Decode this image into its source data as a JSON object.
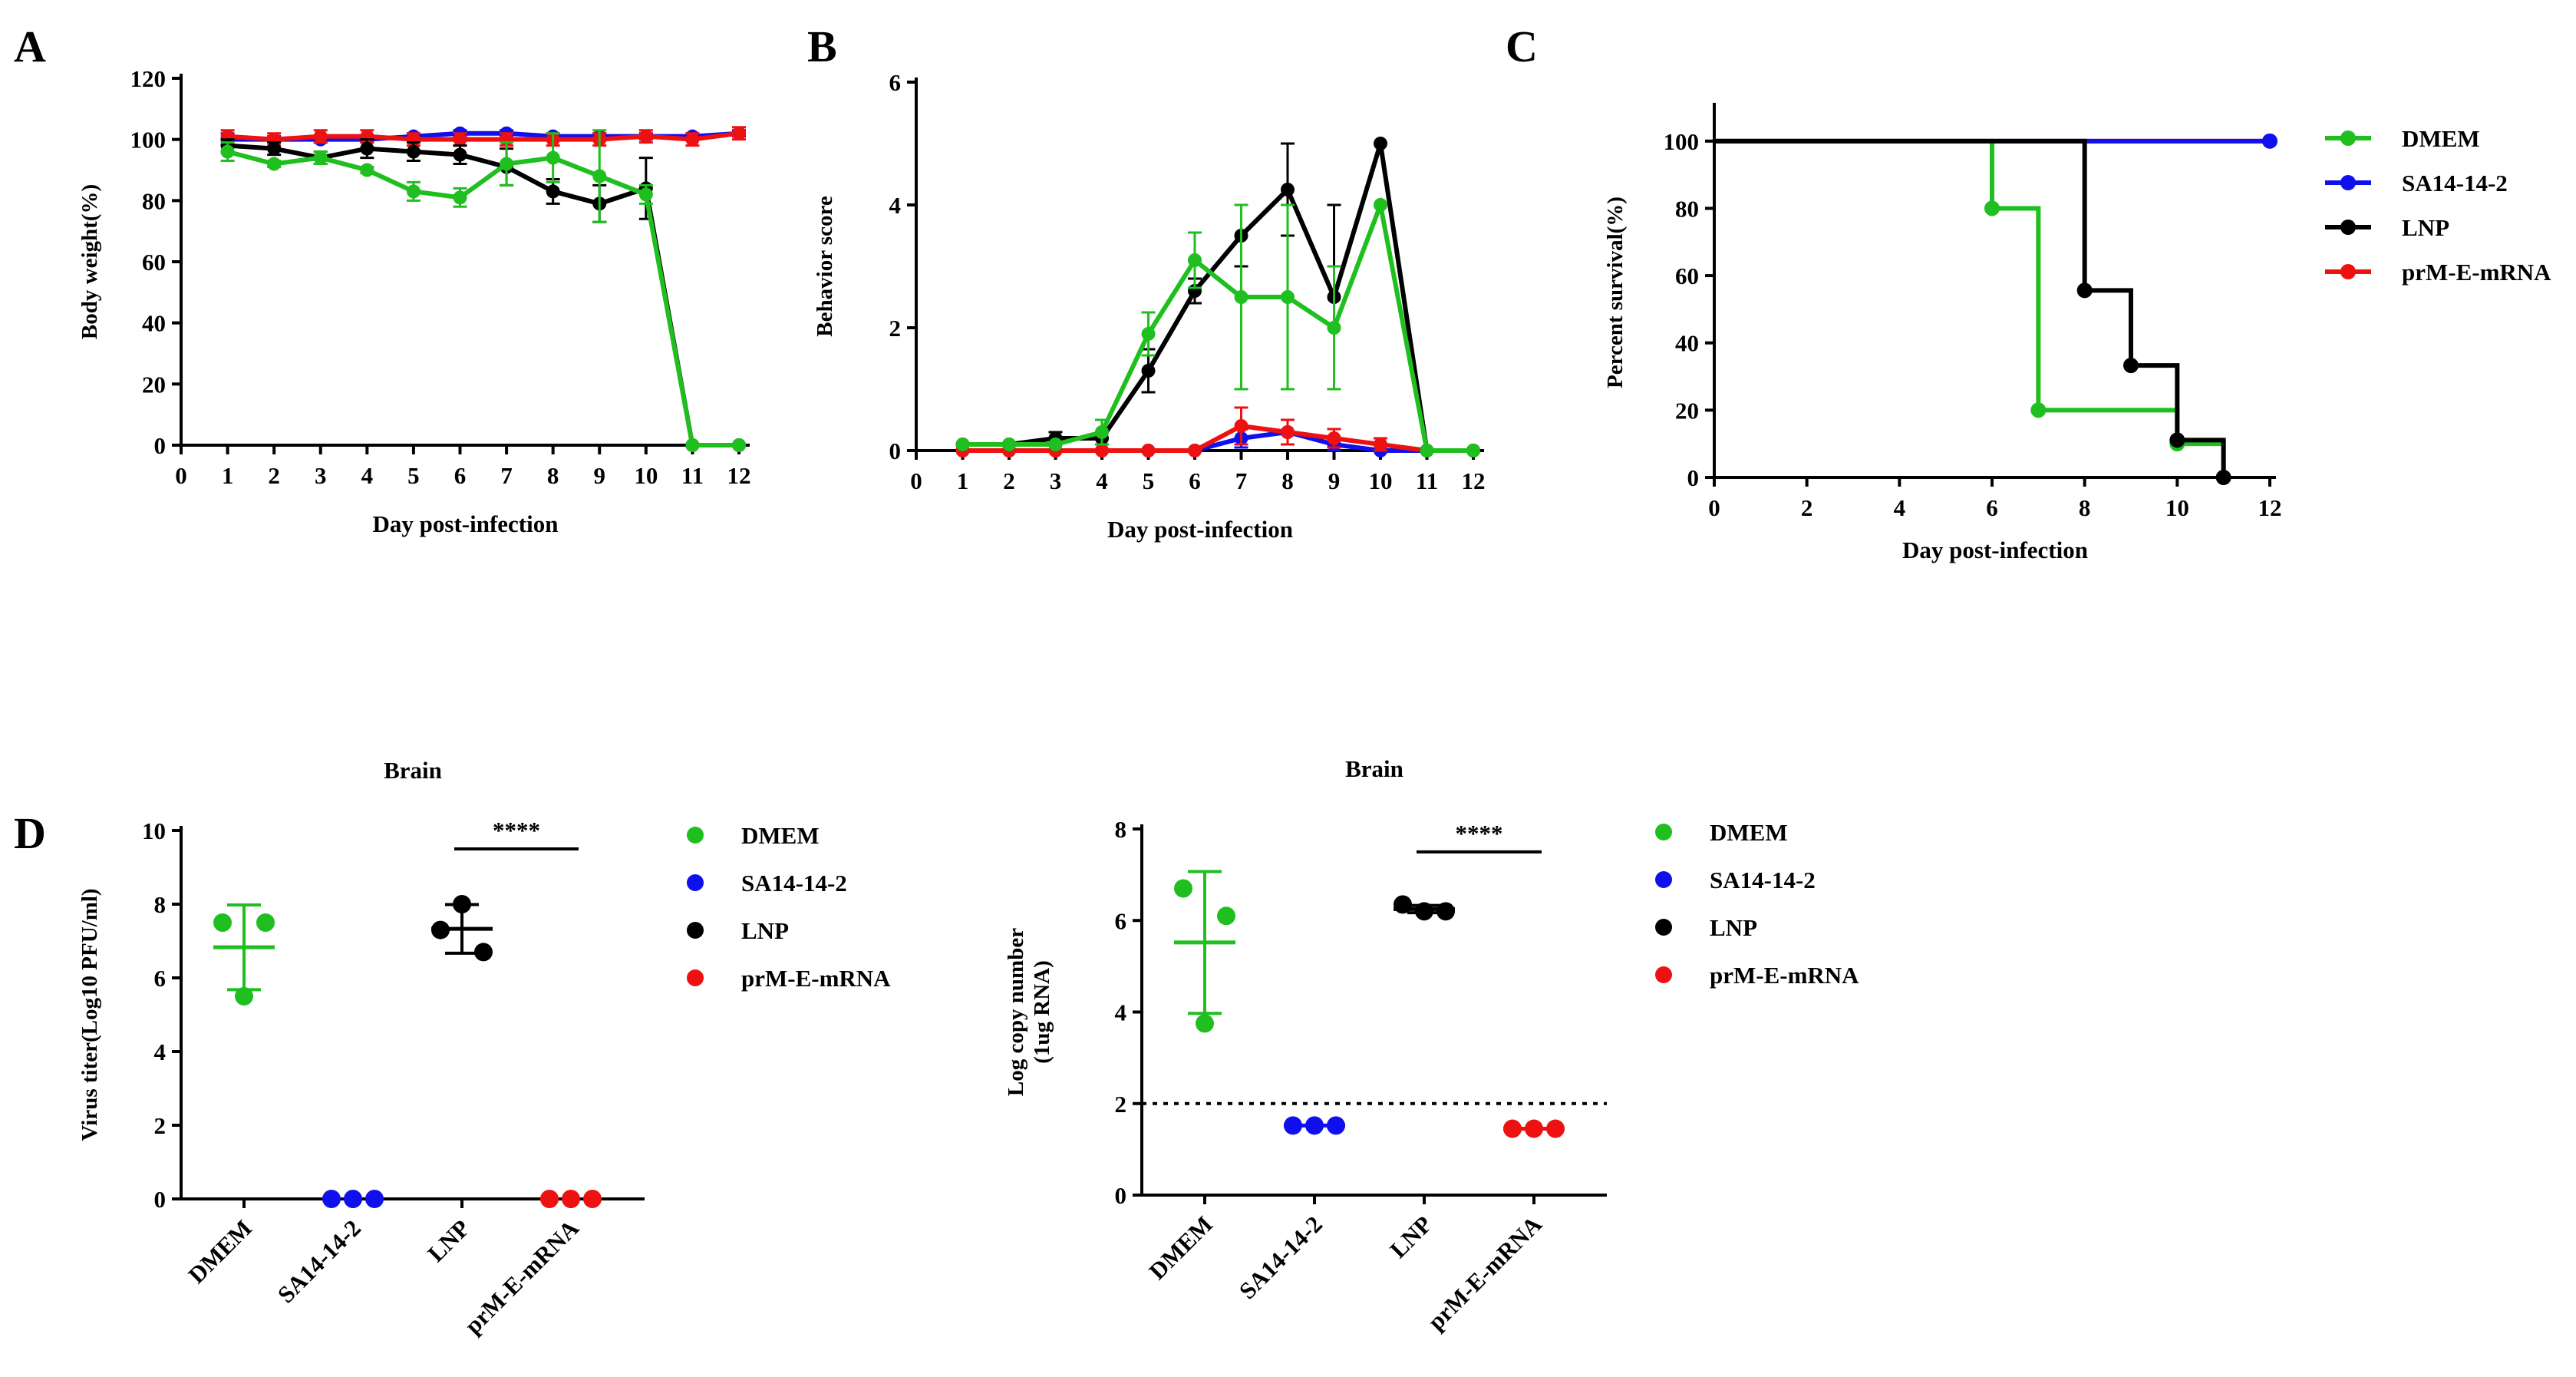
{
  "colors": {
    "DMEM": "#1fbf1f",
    "SA14-14-2": "#1010ee",
    "LNP": "#000000",
    "prM-E-mRNA": "#ee1111"
  },
  "panel_letters": [
    "A",
    "B",
    "C",
    "D"
  ],
  "chart_data": [
    {
      "id": "A",
      "type": "line",
      "xlabel": "Day post-infection",
      "ylabel": "Body weight(%)",
      "xlim": [
        0,
        12
      ],
      "ylim": [
        0,
        120
      ],
      "xticks": [
        0,
        1,
        2,
        3,
        4,
        5,
        6,
        7,
        8,
        9,
        10,
        11,
        12
      ],
      "yticks": [
        0,
        20,
        40,
        60,
        80,
        100,
        120
      ],
      "x": [
        1,
        2,
        3,
        4,
        5,
        6,
        7,
        8,
        9,
        10,
        11,
        12
      ],
      "series": [
        {
          "name": "SA14-14-2",
          "values": [
            100,
            100,
            100,
            100,
            101,
            102,
            102,
            101,
            101,
            101,
            101,
            102
          ],
          "err": [
            2,
            1,
            1,
            1,
            1,
            1,
            1,
            1,
            1,
            1,
            1,
            1
          ]
        },
        {
          "name": "prM-E-mRNA",
          "values": [
            101,
            100,
            101,
            101,
            100,
            100,
            100,
            100,
            100,
            101,
            100,
            102
          ],
          "err": [
            2,
            2,
            2,
            2,
            2,
            2,
            2,
            2,
            2,
            2,
            2,
            2
          ]
        },
        {
          "name": "LNP",
          "values": [
            98,
            97,
            94,
            97,
            96,
            95,
            91,
            83,
            79,
            84,
            0,
            0
          ],
          "err": [
            2,
            2,
            2,
            3,
            3,
            3,
            6,
            4,
            6,
            10,
            0,
            0
          ]
        },
        {
          "name": "DMEM",
          "values": [
            96,
            92,
            94,
            90,
            83,
            81,
            92,
            94,
            88,
            82,
            0,
            0
          ],
          "err": [
            3,
            1,
            2,
            1,
            3,
            3,
            7,
            8,
            15,
            3,
            0,
            0
          ]
        }
      ]
    },
    {
      "id": "B",
      "type": "line",
      "xlabel": "Day post-infection",
      "ylabel": "Behavior score",
      "xlim": [
        0,
        12
      ],
      "ylim": [
        0,
        6
      ],
      "xticks": [
        0,
        1,
        2,
        3,
        4,
        5,
        6,
        7,
        8,
        9,
        10,
        11,
        12
      ],
      "yticks": [
        0,
        2,
        4,
        6
      ],
      "x": [
        1,
        2,
        3,
        4,
        5,
        6,
        7,
        8,
        9,
        10,
        11,
        12
      ],
      "series": [
        {
          "name": "SA14-14-2",
          "values": [
            0,
            0,
            0,
            0,
            0,
            0,
            0.2,
            0.3,
            0.1,
            0,
            0,
            0
          ],
          "err": [
            0,
            0,
            0,
            0,
            0,
            0,
            0.15,
            0.2,
            0.1,
            0,
            0,
            0
          ]
        },
        {
          "name": "prM-E-mRNA",
          "values": [
            0,
            0,
            0,
            0,
            0,
            0,
            0.4,
            0.3,
            0.2,
            0.1,
            0,
            0
          ],
          "err": [
            0,
            0,
            0,
            0,
            0,
            0,
            0.3,
            0.2,
            0.15,
            0.1,
            0,
            0
          ]
        },
        {
          "name": "LNP",
          "values": [
            0.1,
            0.1,
            0.2,
            0.2,
            1.3,
            2.6,
            3.5,
            4.25,
            2.5,
            5,
            0,
            0
          ],
          "err": [
            0,
            0,
            0.1,
            0.1,
            0.35,
            0.2,
            0.5,
            0.75,
            1.5,
            0,
            0,
            0
          ]
        },
        {
          "name": "DMEM",
          "values": [
            0.1,
            0.1,
            0.1,
            0.3,
            1.9,
            3.1,
            2.5,
            2.5,
            2,
            4,
            0,
            0
          ],
          "err": [
            0,
            0,
            0,
            0.2,
            0.35,
            0.45,
            1.5,
            1.5,
            1,
            0,
            0,
            0
          ]
        }
      ]
    },
    {
      "id": "C",
      "type": "step",
      "xlabel": "Day post-infection",
      "ylabel": "Percent survival(%)",
      "xlim": [
        0,
        12
      ],
      "ylim": [
        0,
        110
      ],
      "xticks": [
        0,
        2,
        4,
        6,
        8,
        10,
        12
      ],
      "yticks": [
        0,
        20,
        40,
        60,
        80,
        100
      ],
      "series": [
        {
          "name": "DMEM",
          "x": [
            0,
            6,
            7,
            10,
            11
          ],
          "y": [
            100,
            80,
            20,
            10,
            0
          ],
          "markers_x": [
            6,
            7,
            10
          ],
          "markers_y": [
            80,
            20,
            10
          ]
        },
        {
          "name": "SA14-14-2",
          "x": [
            0,
            12
          ],
          "y": [
            100,
            100
          ],
          "markers_x": [
            12
          ],
          "markers_y": [
            100
          ]
        },
        {
          "name": "LNP",
          "x": [
            0,
            8,
            9,
            10,
            11
          ],
          "y": [
            100,
            55.6,
            33.3,
            11.1,
            0
          ],
          "markers_x": [
            8,
            9,
            10,
            11
          ],
          "markers_y": [
            55.6,
            33.3,
            11.1,
            0
          ]
        },
        {
          "name": "prM-E-mRNA",
          "x": [
            0,
            12
          ],
          "y": [
            100,
            100
          ],
          "markers_x": [],
          "markers_y": []
        }
      ],
      "legend": [
        "DMEM",
        "SA14-14-2",
        "LNP",
        "prM-E-mRNA"
      ]
    },
    {
      "id": "D1",
      "type": "scatter",
      "title": "Brain",
      "ylabel": "Virus titer(Log10 PFU/ml)",
      "ylim": [
        0,
        10
      ],
      "yticks": [
        0,
        2,
        4,
        6,
        8,
        10
      ],
      "categories": [
        "DMEM",
        "SA14-14-2",
        "LNP",
        "prM-E-mRNA"
      ],
      "points": [
        [
          7.5,
          7.5,
          5.5
        ],
        [
          0,
          0,
          0
        ],
        [
          8.0,
          7.3,
          6.7
        ],
        [
          0,
          0,
          0
        ]
      ],
      "mean": [
        6.83,
        null,
        7.33,
        null
      ],
      "sd": [
        1.15,
        null,
        0.66,
        null
      ],
      "significance": {
        "label": "****",
        "groups": [
          2,
          3
        ],
        "y": 9.5
      },
      "legend": [
        "DMEM",
        "SA14-14-2",
        "LNP",
        "prM-E-mRNA"
      ]
    },
    {
      "id": "D2",
      "type": "scatter",
      "title": "Brain",
      "ylabel": "Log copy number",
      "ylabel2": "(1ug RNA)",
      "ylim": [
        0,
        8
      ],
      "yticks": [
        0,
        2,
        4,
        6,
        8
      ],
      "categories": [
        "DMEM",
        "SA14-14-2",
        "LNP",
        "prM-E-mRNA"
      ],
      "points": [
        [
          6.7,
          6.1,
          3.75
        ],
        [
          1.52,
          1.52,
          1.52
        ],
        [
          6.35,
          6.2,
          6.2
        ],
        [
          1.45,
          1.45,
          1.45
        ]
      ],
      "mean": [
        5.52,
        1.52,
        6.25,
        1.45
      ],
      "sd": [
        1.55,
        0,
        0.08,
        0
      ],
      "significance": {
        "label": "****",
        "groups": [
          2,
          3
        ],
        "y": 7.5
      },
      "threshold": 2,
      "legend": [
        "DMEM",
        "SA14-14-2",
        "LNP",
        "prM-E-mRNA"
      ]
    }
  ]
}
